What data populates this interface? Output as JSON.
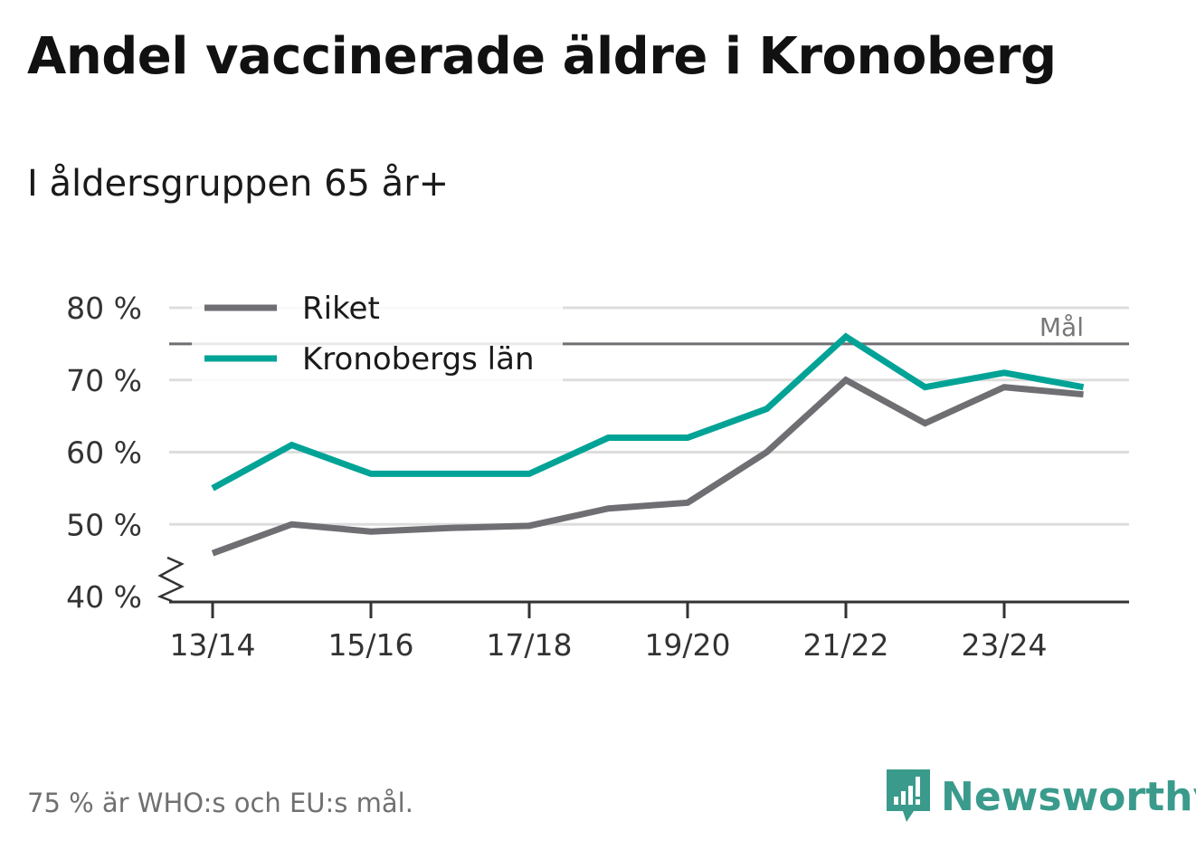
{
  "title": "Andel vaccinerade äldre i Kronoberg",
  "subtitle": "I åldersgruppen 65 år+",
  "footnote": "75 % är WHO:s och EU:s mål.",
  "brand": {
    "name": "Newsworthy",
    "icon": "newsworthy-logo-icon",
    "color": "#3a9b8c"
  },
  "colors": {
    "riket": "#6e6e73",
    "kronoberg": "#00a396",
    "grid": "#dddddd",
    "axis": "#333333",
    "goal": "#6e6e73"
  },
  "chart_data": {
    "type": "line",
    "title": "Andel vaccinerade äldre i Kronoberg",
    "x": [
      "13/14",
      "14/15",
      "15/16",
      "16/17",
      "17/18",
      "18/19",
      "19/20",
      "20/21",
      "21/22",
      "22/23",
      "23/24",
      "24/25"
    ],
    "xtick_labels": [
      "13/14",
      "15/16",
      "17/18",
      "19/20",
      "21/22",
      "23/24"
    ],
    "yticks": [
      40,
      50,
      60,
      70,
      80
    ],
    "ytick_labels": [
      "40 %",
      "50 %",
      "60 %",
      "70 %",
      "80 %"
    ],
    "ylim": [
      40,
      80
    ],
    "y_axis_break": true,
    "grid": true,
    "legend_position": "top-left",
    "goal": {
      "value": 75,
      "label": "Mål"
    },
    "series": [
      {
        "name": "Riket",
        "values": [
          46,
          50,
          49,
          49.5,
          49.8,
          52.2,
          53,
          60,
          70,
          64,
          69,
          68
        ]
      },
      {
        "name": "Kronobergs län",
        "values": [
          55,
          61,
          57,
          57,
          57,
          62,
          62,
          66,
          76,
          69,
          71,
          69
        ]
      }
    ]
  }
}
